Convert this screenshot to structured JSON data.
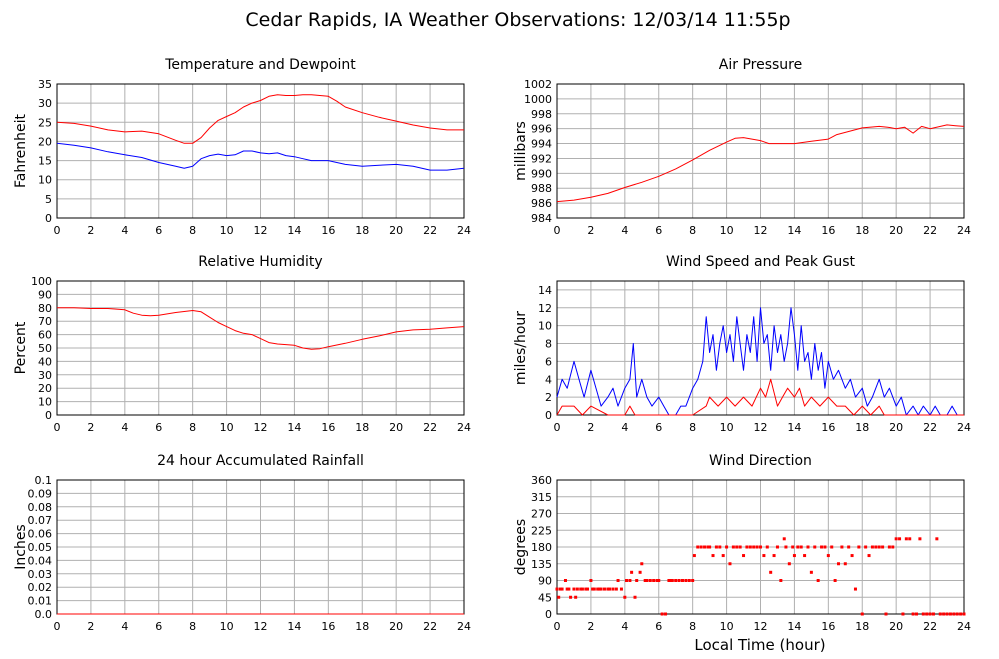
{
  "page": {
    "title": "Cedar Rapids, IA Weather Observations: 12/03/14 11:55p",
    "x_axis_label": "Local Time (hour)"
  },
  "colors": {
    "red_series": "#ff0000",
    "blue_series": "#0000ff",
    "grid": "#b0b0b0"
  },
  "chart_data": [
    {
      "id": "temperature",
      "type": "line",
      "title": "Temperature and Dewpoint",
      "xlabel": "",
      "ylabel": "Fahrenheit",
      "xlim": [
        0,
        24
      ],
      "ylim": [
        0,
        35
      ],
      "x_ticks": [
        0,
        2,
        4,
        6,
        8,
        10,
        12,
        14,
        16,
        18,
        20,
        22,
        24
      ],
      "y_ticks": [
        0,
        5,
        10,
        15,
        20,
        25,
        30,
        35
      ],
      "y_tick_labels": [
        "0",
        "5",
        "10",
        "15",
        "20",
        "25",
        "30",
        "35"
      ],
      "grid": true,
      "series": [
        {
          "color": "#ff0000",
          "x": [
            0,
            1,
            2,
            3,
            4,
            5,
            6,
            7,
            7.5,
            8,
            8.5,
            9,
            9.5,
            10,
            10.5,
            11,
            11.5,
            12,
            12.5,
            13,
            13.5,
            14,
            14.5,
            15,
            15.5,
            16,
            16.5,
            17,
            18,
            19,
            20,
            21,
            22,
            23,
            24
          ],
          "y": [
            25,
            24.7,
            24,
            23,
            22.5,
            22.7,
            22,
            20.3,
            19.5,
            19.5,
            21,
            23.5,
            25.5,
            26.5,
            27.5,
            29,
            30,
            30.7,
            31.8,
            32.2,
            32,
            32,
            32.2,
            32.2,
            32,
            31.8,
            30.5,
            29,
            27.5,
            26.3,
            25.3,
            24.3,
            23.5,
            23,
            23
          ]
        },
        {
          "color": "#0000ff",
          "x": [
            0,
            1,
            2,
            3,
            4,
            5,
            6,
            7,
            7.5,
            8,
            8.5,
            9,
            9.5,
            10,
            10.5,
            11,
            11.5,
            12,
            12.5,
            13,
            13.5,
            14,
            14.5,
            15,
            16,
            17,
            18,
            19,
            20,
            21,
            22,
            23,
            24
          ],
          "y": [
            19.5,
            19,
            18.3,
            17.3,
            16.5,
            15.8,
            14.5,
            13.5,
            13,
            13.5,
            15.5,
            16.3,
            16.7,
            16.3,
            16.5,
            17.5,
            17.5,
            17,
            16.8,
            17,
            16.3,
            16,
            15.5,
            15,
            15,
            14,
            13.5,
            13.8,
            14,
            13.5,
            12.5,
            12.5,
            13
          ]
        }
      ]
    },
    {
      "id": "pressure",
      "type": "line",
      "title": "Air Pressure",
      "xlabel": "",
      "ylabel": "millibars",
      "xlim": [
        0,
        24
      ],
      "ylim": [
        984,
        1002
      ],
      "x_ticks": [
        0,
        2,
        4,
        6,
        8,
        10,
        12,
        14,
        16,
        18,
        20,
        22,
        24
      ],
      "y_ticks": [
        984,
        986,
        988,
        990,
        992,
        994,
        996,
        998,
        1000,
        1002
      ],
      "y_tick_labels": [
        "984",
        "986",
        "988",
        "990",
        "992",
        "994",
        "996",
        "998",
        "1000",
        "1002"
      ],
      "grid": true,
      "series": [
        {
          "color": "#ff0000",
          "x": [
            0,
            1,
            2,
            3,
            4,
            5,
            6,
            7,
            8,
            9,
            10,
            10.5,
            11,
            11.5,
            12,
            12.5,
            13,
            14,
            15,
            16,
            16.5,
            17,
            18,
            19,
            19.5,
            20,
            20.5,
            21,
            21.5,
            22,
            23,
            23.5,
            24
          ],
          "y": [
            986.2,
            986.4,
            986.8,
            987.3,
            988.1,
            988.8,
            989.6,
            990.6,
            991.8,
            993.1,
            994.2,
            994.7,
            994.8,
            994.6,
            994.4,
            994,
            994,
            994,
            994.3,
            994.6,
            995.2,
            995.5,
            996.1,
            996.3,
            996.2,
            996,
            996.2,
            995.4,
            996.3,
            996,
            996.5,
            996.4,
            996.3
          ]
        }
      ]
    },
    {
      "id": "humidity",
      "type": "line",
      "title": "Relative Humidity",
      "xlabel": "",
      "ylabel": "Percent",
      "xlim": [
        0,
        24
      ],
      "ylim": [
        0,
        100
      ],
      "x_ticks": [
        0,
        2,
        4,
        6,
        8,
        10,
        12,
        14,
        16,
        18,
        20,
        22,
        24
      ],
      "y_ticks": [
        0,
        10,
        20,
        30,
        40,
        50,
        60,
        70,
        80,
        90,
        100
      ],
      "y_tick_labels": [
        "0",
        "10",
        "20",
        "30",
        "40",
        "50",
        "60",
        "70",
        "80",
        "90",
        "100"
      ],
      "grid": true,
      "series": [
        {
          "color": "#ff0000",
          "x": [
            0,
            1,
            2,
            3,
            4,
            4.5,
            5,
            5.5,
            6,
            7,
            8,
            8.5,
            9,
            9.5,
            10,
            10.5,
            11,
            11.5,
            12,
            12.5,
            13,
            14,
            14.5,
            15,
            15.5,
            16,
            17,
            18,
            19,
            20,
            21,
            22,
            23,
            24
          ],
          "y": [
            80,
            80,
            79.5,
            79.5,
            78.5,
            76,
            74.5,
            74,
            74.5,
            76.5,
            78,
            77,
            73,
            69,
            66,
            63,
            61,
            60,
            57,
            54,
            53,
            52,
            50,
            49,
            49.5,
            51,
            53.5,
            56.5,
            59,
            62,
            63.5,
            64,
            65,
            66
          ]
        }
      ]
    },
    {
      "id": "wind_speed",
      "type": "line",
      "title": "Wind Speed and Peak Gust",
      "xlabel": "",
      "ylabel": "miles/hour",
      "xlim": [
        0,
        24
      ],
      "ylim": [
        0,
        15
      ],
      "x_ticks": [
        0,
        2,
        4,
        6,
        8,
        10,
        12,
        14,
        16,
        18,
        20,
        22,
        24
      ],
      "y_ticks": [
        0,
        2,
        4,
        6,
        8,
        10,
        12,
        14
      ],
      "y_tick_labels": [
        "0",
        "2",
        "4",
        "6",
        "8",
        "10",
        "12",
        "14"
      ],
      "grid": true,
      "series": [
        {
          "color": "#0000ff",
          "x": [
            0,
            0.3,
            0.6,
            1,
            1.3,
            1.6,
            2,
            2.3,
            2.6,
            3,
            3.3,
            3.6,
            4,
            4.3,
            4.5,
            4.7,
            5,
            5.3,
            5.6,
            6,
            6.3,
            6.6,
            7,
            7.3,
            7.6,
            8,
            8.3,
            8.6,
            8.8,
            9,
            9.2,
            9.4,
            9.6,
            9.8,
            10,
            10.2,
            10.4,
            10.6,
            10.8,
            11,
            11.2,
            11.4,
            11.6,
            11.8,
            12,
            12.2,
            12.4,
            12.6,
            12.8,
            13,
            13.2,
            13.4,
            13.6,
            13.8,
            14,
            14.2,
            14.4,
            14.6,
            14.8,
            15,
            15.2,
            15.4,
            15.6,
            15.8,
            16,
            16.3,
            16.6,
            17,
            17.3,
            17.6,
            18,
            18.3,
            18.6,
            19,
            19.3,
            19.6,
            20,
            20.3,
            20.6,
            21,
            21.3,
            21.6,
            22,
            22.3,
            22.6,
            23,
            23.3,
            23.6,
            24
          ],
          "y": [
            2,
            4,
            3,
            6,
            4,
            2,
            5,
            3,
            1,
            2,
            3,
            1,
            3,
            4,
            8,
            2,
            4,
            2,
            1,
            2,
            1,
            0,
            0,
            1,
            1,
            3,
            4,
            6,
            11,
            7,
            9,
            5,
            8,
            10,
            7,
            9,
            6,
            11,
            8,
            5,
            9,
            7,
            11,
            6,
            12,
            8,
            9,
            5,
            10,
            7,
            9,
            6,
            8,
            12,
            9,
            5,
            10,
            6,
            7,
            4,
            8,
            5,
            7,
            3,
            6,
            4,
            5,
            3,
            4,
            2,
            3,
            1,
            2,
            4,
            2,
            3,
            1,
            2,
            0,
            1,
            0,
            1,
            0,
            1,
            0,
            0,
            1,
            0,
            0
          ]
        },
        {
          "color": "#ff0000",
          "x": [
            0,
            0.3,
            0.6,
            1,
            1.5,
            2,
            3,
            4,
            4.3,
            4.6,
            5,
            6,
            7,
            8,
            8.8,
            9,
            9.5,
            10,
            10.5,
            11,
            11.5,
            12,
            12.3,
            12.6,
            13,
            13.3,
            13.6,
            14,
            14.3,
            14.6,
            15,
            15.5,
            16,
            16.5,
            17,
            17.5,
            18,
            18.5,
            19,
            19.3,
            19.6,
            20,
            21,
            22,
            23,
            24
          ],
          "y": [
            0,
            1,
            1,
            1,
            0,
            1,
            0,
            0,
            1,
            0,
            0,
            0,
            0,
            0,
            1,
            2,
            1,
            2,
            1,
            2,
            1,
            3,
            2,
            4,
            1,
            2,
            3,
            2,
            3,
            1,
            2,
            1,
            2,
            1,
            1,
            0,
            1,
            0,
            1,
            0,
            0,
            0,
            0,
            0,
            0,
            0
          ]
        }
      ]
    },
    {
      "id": "rainfall",
      "type": "line",
      "title": "24 hour Accumulated Rainfall",
      "xlabel": "",
      "ylabel": "Inches",
      "xlim": [
        0,
        24
      ],
      "ylim": [
        0,
        0.1
      ],
      "x_ticks": [
        0,
        2,
        4,
        6,
        8,
        10,
        12,
        14,
        16,
        18,
        20,
        22,
        24
      ],
      "y_ticks": [
        0,
        0.01,
        0.02,
        0.03,
        0.04,
        0.05,
        0.06,
        0.07,
        0.08,
        0.09,
        0.1
      ],
      "y_tick_labels": [
        "0.0",
        "0.01",
        "0.02",
        "0.03",
        "0.04",
        "0.05",
        "0.06",
        "0.07",
        "0.08",
        "0.09",
        "0.1"
      ],
      "grid": true,
      "series": [
        {
          "color": "#ff0000",
          "x": [
            0,
            24
          ],
          "y": [
            0,
            0
          ]
        }
      ]
    },
    {
      "id": "wind_direction",
      "type": "scatter",
      "title": "Wind Direction",
      "xlabel": "Local Time (hour)",
      "ylabel": "degrees",
      "xlim": [
        0,
        24
      ],
      "ylim": [
        0,
        360
      ],
      "x_ticks": [
        0,
        2,
        4,
        6,
        8,
        10,
        12,
        14,
        16,
        18,
        20,
        22,
        24
      ],
      "y_ticks": [
        0,
        45,
        90,
        135,
        180,
        225,
        270,
        315,
        360
      ],
      "y_tick_labels": [
        "0",
        "45",
        "90",
        "135",
        "180",
        "225",
        "270",
        "315",
        "360"
      ],
      "grid": true,
      "series": [
        {
          "color": "#ff0000",
          "x": [
            0,
            0.1,
            0.2,
            0.3,
            0.5,
            0.6,
            0.7,
            0.8,
            1.0,
            1.1,
            1.2,
            1.4,
            1.5,
            1.7,
            1.8,
            2.0,
            2.1,
            2.2,
            2.4,
            2.5,
            2.6,
            2.8,
            3.0,
            3.1,
            3.3,
            3.5,
            3.6,
            3.8,
            4.0,
            4.1,
            4.3,
            4.4,
            4.6,
            4.7,
            4.9,
            5.0,
            5.2,
            5.3,
            5.5,
            5.7,
            5.9,
            6.0,
            6.2,
            6.4,
            6.6,
            6.7,
            6.8,
            7.0,
            7.2,
            7.4,
            7.6,
            7.8,
            8.0,
            8.1,
            8.3,
            8.5,
            8.7,
            8.9,
            9.0,
            9.2,
            9.4,
            9.6,
            9.8,
            10.0,
            10.2,
            10.4,
            10.6,
            10.8,
            11.0,
            11.2,
            11.4,
            11.6,
            11.8,
            12.0,
            12.2,
            12.4,
            12.6,
            12.8,
            13.0,
            13.2,
            13.4,
            13.5,
            13.7,
            13.9,
            14.0,
            14.2,
            14.4,
            14.6,
            14.8,
            15.0,
            15.2,
            15.4,
            15.6,
            15.8,
            16.0,
            16.2,
            16.4,
            16.6,
            16.8,
            17.0,
            17.2,
            17.4,
            17.6,
            17.8,
            18.0,
            18.2,
            18.4,
            18.6,
            18.8,
            19.0,
            19.2,
            19.4,
            19.6,
            19.8,
            20.0,
            20.2,
            20.4,
            20.6,
            20.8,
            21.0,
            21.2,
            21.4,
            21.6,
            21.8,
            22.0,
            22.2,
            22.4,
            22.6,
            22.8,
            23.0,
            23.2,
            23.4,
            23.6,
            23.8,
            24.0
          ],
          "y": [
            67,
            45,
            67,
            67,
            90,
            67,
            67,
            45,
            67,
            45,
            67,
            67,
            67,
            67,
            67,
            90,
            67,
            67,
            67,
            67,
            67,
            67,
            67,
            67,
            67,
            67,
            90,
            67,
            45,
            90,
            90,
            112,
            45,
            90,
            112,
            135,
            90,
            90,
            90,
            90,
            90,
            90,
            0,
            0,
            90,
            90,
            90,
            90,
            90,
            90,
            90,
            90,
            90,
            157,
            180,
            180,
            180,
            180,
            180,
            157,
            180,
            180,
            157,
            180,
            135,
            180,
            180,
            180,
            157,
            180,
            180,
            180,
            180,
            180,
            157,
            180,
            112,
            157,
            180,
            90,
            202,
            180,
            135,
            180,
            157,
            180,
            180,
            157,
            180,
            112,
            180,
            90,
            180,
            180,
            157,
            180,
            90,
            135,
            180,
            135,
            180,
            157,
            67,
            180,
            0,
            180,
            157,
            180,
            180,
            180,
            180,
            0,
            180,
            180,
            202,
            202,
            0,
            202,
            202,
            0,
            0,
            202,
            0,
            0,
            0,
            0,
            202,
            0,
            0,
            0,
            0,
            0,
            0,
            0,
            0
          ]
        }
      ]
    }
  ]
}
